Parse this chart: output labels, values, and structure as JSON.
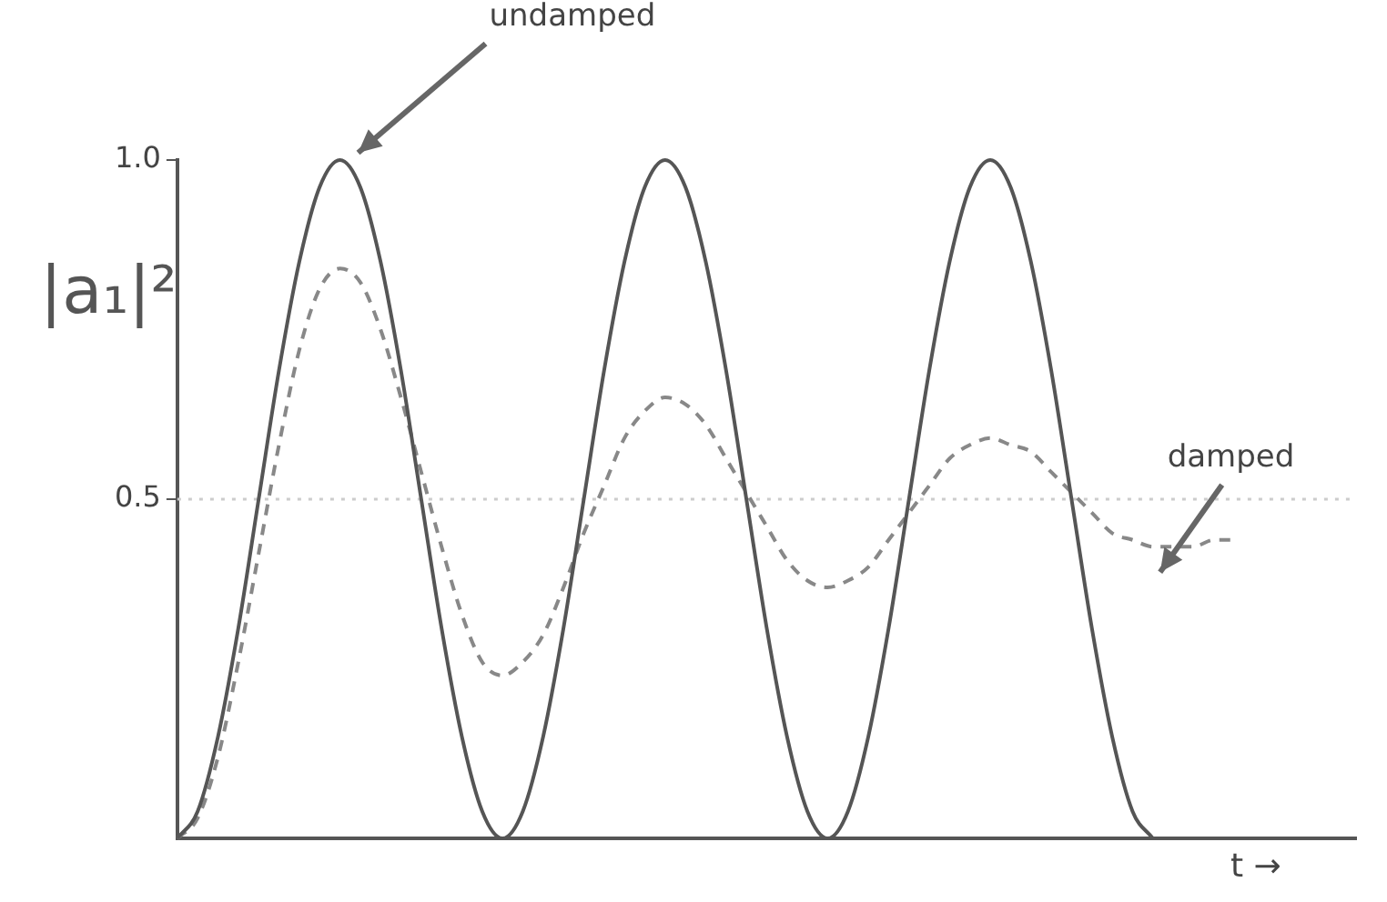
{
  "chart_data": {
    "type": "line",
    "xlabel": "t →",
    "ylabel": "|a₁|²",
    "categories": [
      null,
      null,
      null,
      null,
      null,
      null,
      null,
      null,
      null,
      null,
      null,
      null,
      null,
      null,
      null,
      null,
      null,
      null,
      null,
      null,
      null,
      null,
      null,
      null,
      null,
      null,
      null,
      null,
      null,
      null,
      null,
      null,
      null,
      null,
      null,
      null,
      null,
      null,
      null,
      null,
      null,
      null,
      null,
      null,
      null,
      null,
      null,
      null,
      null,
      null,
      null,
      null,
      null,
      null,
      null,
      null,
      null,
      null,
      null
    ],
    "series": [
      {
        "name": "undamped",
        "color": "#555555",
        "line_style": "solid",
        "values": [
          0,
          0.04,
          0.15,
          0.31,
          0.5,
          0.69,
          0.85,
          0.96,
          1,
          0.96,
          0.85,
          0.69,
          0.5,
          0.31,
          0.15,
          0.04,
          0,
          0.04,
          0.15,
          0.31,
          0.5,
          0.69,
          0.85,
          0.96,
          1,
          0.96,
          0.85,
          0.69,
          0.5,
          0.31,
          0.15,
          0.04,
          0,
          0.04,
          0.15,
          0.31,
          0.5,
          0.69,
          0.85,
          0.96,
          1,
          0.96,
          0.85,
          0.69,
          0.5,
          0.31,
          0.15,
          0.04,
          0,
          null,
          null,
          null,
          null,
          null,
          null,
          null,
          null,
          null,
          null
        ]
      },
      {
        "name": "damped",
        "color": "#888888",
        "line_style": "dashed",
        "values": [
          0,
          0.03,
          0.12,
          0.26,
          0.42,
          0.58,
          0.72,
          0.81,
          0.84,
          0.82,
          0.75,
          0.65,
          0.54,
          0.43,
          0.33,
          0.26,
          0.24,
          0.26,
          0.3,
          0.37,
          0.45,
          0.52,
          0.59,
          0.63,
          0.65,
          0.64,
          0.61,
          0.56,
          0.51,
          0.46,
          0.41,
          0.38,
          0.37,
          0.38,
          0.4,
          0.44,
          0.48,
          0.52,
          0.56,
          0.58,
          0.59,
          0.58,
          0.57,
          0.54,
          0.51,
          0.48,
          0.45,
          0.44,
          0.43,
          0.43,
          0.43,
          0.44,
          0.44,
          null,
          null,
          null,
          null,
          null,
          null
        ]
      }
    ],
    "ylim": [
      0,
      1
    ],
    "yticks": [
      0.5,
      {
        "value": 1,
        "label": "1.0"
      }
    ],
    "ref_lines": [
      {
        "axis": "y",
        "value": 0.5,
        "color": "#cccccc",
        "line_style": "dotted"
      }
    ],
    "tick_labels": "y",
    "grid": false,
    "legend": false,
    "marker": "none"
  }
}
